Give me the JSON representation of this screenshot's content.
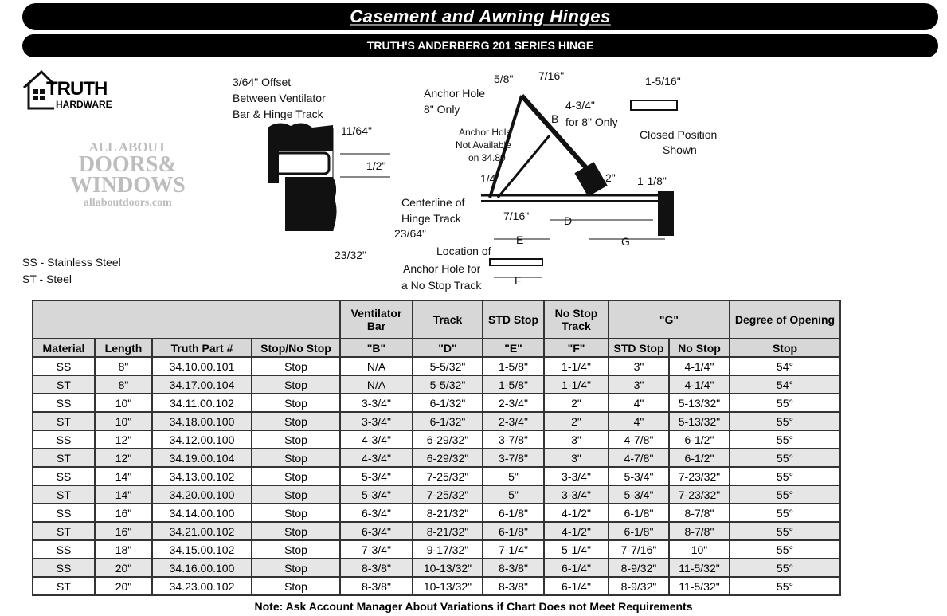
{
  "header": {
    "title": "Casement and Awning Hinges",
    "subtitle": "TRUTH'S ANDERBERG 201 SERIES HINGE"
  },
  "logo": {
    "brand": "TRUTH",
    "sub": "HARDWARE"
  },
  "watermark": {
    "line1": "ALL ABOUT",
    "line2": "DOORS&",
    "line3": "WINDOWS",
    "url": "allaboutdoors.com"
  },
  "legend": [
    "SS - Stainless Steel",
    "ST - Steel"
  ],
  "diagram": {
    "offset": "3/64\" Offset",
    "offset2": "Between Ventilator",
    "offset3": "Bar & Hinge Track",
    "d1164": "11/64\"",
    "d12": "1/2\"",
    "centerline1": "Centerline of",
    "centerline2": "Hinge Track",
    "d2364": "23/64\"",
    "d2332": "23/32\"",
    "loc1": "Location of",
    "loc2": "Anchor Hole for",
    "loc3": "a No Stop Track",
    "anchor1": "Anchor Hole",
    "anchor2": "8\" Only",
    "na1": "Anchor Hole",
    "na2": "Not Available",
    "na3": "on 34.80",
    "d58": "5/8\"",
    "d716a": "7/16\"",
    "b": "B",
    "d434": "4-3/4\"",
    "for8": "for 8\" Only",
    "d14": "1/4\"",
    "d2": "2\"",
    "d716b": "7/16\"",
    "dD": "D",
    "dE": "E",
    "dF": "F",
    "dG": "G",
    "d118": "1-1/8\"",
    "d1516": "1-5/16\"",
    "closed1": "Closed Position",
    "closed2": "Shown"
  },
  "table": {
    "group_headers": [
      "Ventilator Bar",
      "Track",
      "STD Stop",
      "No Stop Track",
      "\"G\"",
      "Degree of Opening"
    ],
    "columns": [
      "Material",
      "Length",
      "Truth Part #",
      "Stop/No Stop",
      "\"B\"",
      "\"D\"",
      "\"E\"",
      "\"F\"",
      "STD Stop",
      "No Stop",
      "Stop"
    ],
    "rows": [
      [
        "SS",
        "8\"",
        "34.10.00.101",
        "Stop",
        "N/A",
        "5-5/32\"",
        "1-5/8\"",
        "1-1/4\"",
        "3\"",
        "4-1/4\"",
        "54°"
      ],
      [
        "ST",
        "8\"",
        "34.17.00.104",
        "Stop",
        "N/A",
        "5-5/32\"",
        "1-5/8\"",
        "1-1/4\"",
        "3\"",
        "4-1/4\"",
        "54°"
      ],
      [
        "SS",
        "10\"",
        "34.11.00.102",
        "Stop",
        "3-3/4\"",
        "6-1/32\"",
        "2-3/4\"",
        "2\"",
        "4\"",
        "5-13/32\"",
        "55°"
      ],
      [
        "ST",
        "10\"",
        "34.18.00.100",
        "Stop",
        "3-3/4\"",
        "6-1/32\"",
        "2-3/4\"",
        "2\"",
        "4\"",
        "5-13/32\"",
        "55°"
      ],
      [
        "SS",
        "12\"",
        "34.12.00.100",
        "Stop",
        "4-3/4\"",
        "6-29/32\"",
        "3-7/8\"",
        "3\"",
        "4-7/8\"",
        "6-1/2\"",
        "55°"
      ],
      [
        "ST",
        "12\"",
        "34.19.00.104",
        "Stop",
        "4-3/4\"",
        "6-29/32\"",
        "3-7/8\"",
        "3\"",
        "4-7/8\"",
        "6-1/2\"",
        "55°"
      ],
      [
        "SS",
        "14\"",
        "34.13.00.102",
        "Stop",
        "5-3/4\"",
        "7-25/32\"",
        "5\"",
        "3-3/4\"",
        "5-3/4\"",
        "7-23/32\"",
        "55°"
      ],
      [
        "ST",
        "14\"",
        "34.20.00.100",
        "Stop",
        "5-3/4\"",
        "7-25/32\"",
        "5\"",
        "3-3/4\"",
        "5-3/4\"",
        "7-23/32\"",
        "55°"
      ],
      [
        "SS",
        "16\"",
        "34.14.00.100",
        "Stop",
        "6-3/4\"",
        "8-21/32\"",
        "6-1/8\"",
        "4-1/2\"",
        "6-1/8\"",
        "8-7/8\"",
        "55°"
      ],
      [
        "ST",
        "16\"",
        "34.21.00.102",
        "Stop",
        "6-3/4\"",
        "8-21/32\"",
        "6-1/8\"",
        "4-1/2\"",
        "6-1/8\"",
        "8-7/8\"",
        "55°"
      ],
      [
        "SS",
        "18\"",
        "34.15.00.102",
        "Stop",
        "7-3/4\"",
        "9-17/32\"",
        "7-1/4\"",
        "5-1/4\"",
        "7-7/16\"",
        "10\"",
        "55°"
      ],
      [
        "SS",
        "20\"",
        "34.16.00.100",
        "Stop",
        "8-3/8\"",
        "10-13/32\"",
        "8-3/8\"",
        "6-1/4\"",
        "8-9/32\"",
        "11-5/32\"",
        "55°"
      ],
      [
        "ST",
        "20\"",
        "34.23.00.102",
        "Stop",
        "8-3/8\"",
        "10-13/32\"",
        "8-3/8\"",
        "6-1/4\"",
        "8-9/32\"",
        "11-5/32\"",
        "55°"
      ]
    ]
  },
  "note": "Note: Ask Account Manager About Variations if Chart Does not Meet Requirements"
}
